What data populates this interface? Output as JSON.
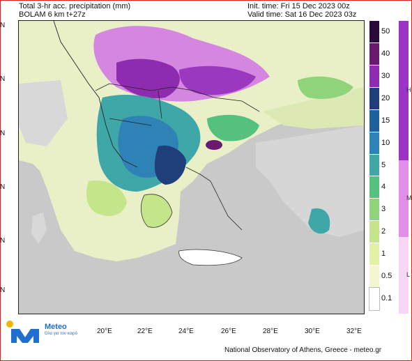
{
  "header": {
    "title": "Total 3-hr acc. precipitation (mm)",
    "model": "BOLAM 6 km t+27z",
    "init_time": "Init. time: Fri 15 Dec 2023 00z",
    "valid_time": "Valid time: Sat 16 Dec 2023 03z"
  },
  "axes": {
    "lon_ticks": [
      "20°E",
      "22°E",
      "24°E",
      "26°E",
      "28°E",
      "30°E",
      "32°E"
    ],
    "lat_ticks": [
      "N",
      "N",
      "N",
      "N",
      "N",
      "N"
    ]
  },
  "colorbar": {
    "levels": [
      "50",
      "40",
      "30",
      "20",
      "15",
      "10",
      "5",
      "4",
      "3",
      "2",
      "1",
      "0.5",
      "0.1"
    ],
    "colors": [
      "#2a0a3a",
      "#6a1a6e",
      "#8e2cb0",
      "#1f3f7a",
      "#1f5f9a",
      "#2f82b6",
      "#3fa7a8",
      "#56c07e",
      "#8fd47a",
      "#c4e58a",
      "#e4f2a7",
      "#f2f7cf",
      "#ffffff"
    ]
  },
  "colorbar2": {
    "labels": [
      "H",
      "M",
      "L"
    ],
    "colors": [
      "#9a33c6",
      "#e08ee8",
      "#f7d7f5"
    ]
  },
  "logo": {
    "name": "Meteo",
    "tagline": "Όλα για τον καιρό",
    "icon_colors": [
      "#f4b400",
      "#1f6fd1"
    ]
  },
  "footer": {
    "credit": "National Observatory of Athens, Greece - meteo.gr"
  }
}
